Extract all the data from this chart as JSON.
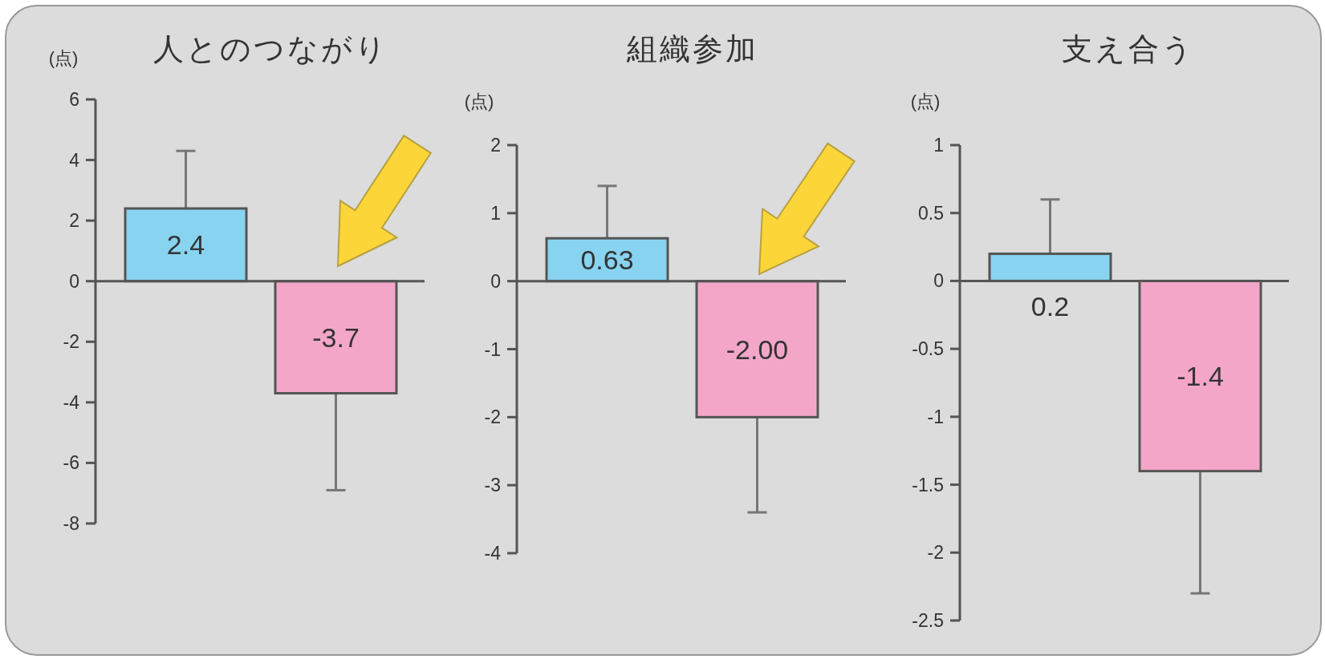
{
  "chart_data": [
    {
      "type": "bar",
      "title": "人とのつながり",
      "ylabel": "(点)",
      "categories": [
        null,
        null
      ],
      "values": [
        2.4,
        -3.7
      ],
      "colors": [
        "#87d3f0",
        "#f4a6c9"
      ],
      "errors": [
        1.9,
        3.2
      ],
      "value_labels": [
        "2.4",
        "-3.7"
      ],
      "ylim": [
        -8,
        6
      ],
      "yticks": [
        -8,
        -6,
        -4,
        -2,
        0,
        2,
        4,
        6
      ],
      "ref_lines": [
        {
          "axis": "y",
          "value": 0
        }
      ]
    },
    {
      "type": "bar",
      "title": "組織参加",
      "ylabel": "(点)",
      "categories": [
        null,
        null
      ],
      "values": [
        0.63,
        -2.0
      ],
      "colors": [
        "#87d3f0",
        "#f4a6c9"
      ],
      "errors": [
        0.77,
        1.4
      ],
      "value_labels": [
        "0.63",
        "-2.00"
      ],
      "ylim": [
        -4,
        2
      ],
      "yticks": [
        -4,
        -3,
        -2,
        -1,
        0,
        1,
        2
      ],
      "ref_lines": [
        {
          "axis": "y",
          "value": 0
        }
      ]
    },
    {
      "type": "bar",
      "title": "支え合う",
      "ylabel": "(点)",
      "categories": [
        null,
        null
      ],
      "values": [
        0.2,
        -1.4
      ],
      "colors": [
        "#87d3f0",
        "#f4a6c9"
      ],
      "errors": [
        0.4,
        0.9
      ],
      "value_labels": [
        "0.2",
        "-1.4"
      ],
      "ylim": [
        -2.5,
        1
      ],
      "yticks": [
        -2.5,
        -2,
        -1.5,
        -1,
        -0.5,
        0,
        0.5,
        1
      ],
      "ref_lines": [
        {
          "axis": "y",
          "value": 0
        }
      ]
    }
  ]
}
